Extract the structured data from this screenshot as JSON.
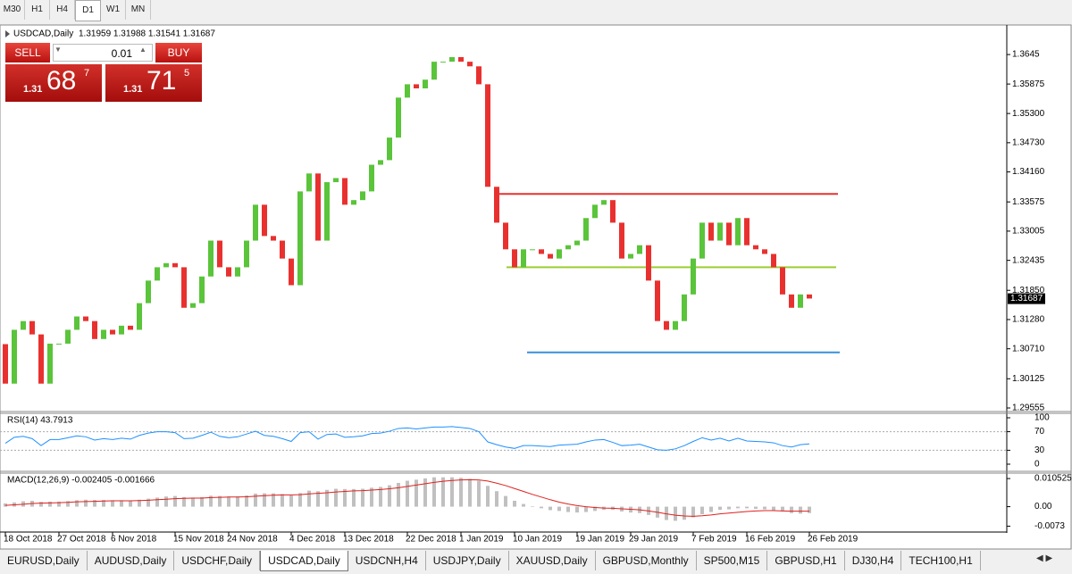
{
  "toolbar": {
    "timeframes": [
      "M30",
      "H1",
      "H4",
      "D1",
      "W1",
      "MN"
    ],
    "active": "D1"
  },
  "trade_panel": {
    "sell": "SELL",
    "buy": "BUY",
    "lot": "0.01",
    "bid": {
      "big": "1.31",
      "main": "68",
      "small": "7"
    },
    "ask": {
      "big": "1.31",
      "main": "71",
      "small": "5"
    }
  },
  "chart_data": [
    {
      "type": "candlestick",
      "title": "USDCAD,Daily",
      "subtitle": "1.31959 1.31988 1.31541 1.31687",
      "categories": [
        "18 Oct 2018",
        null,
        null,
        null,
        null,
        null,
        "27 Oct 2018",
        null,
        null,
        null,
        null,
        null,
        "6 Nov 2018",
        null,
        null,
        null,
        null,
        null,
        null,
        "15 Nov 2018",
        null,
        null,
        null,
        null,
        null,
        "24 Nov 2018",
        null,
        null,
        null,
        null,
        null,
        null,
        "4 Dec 2018",
        null,
        null,
        null,
        null,
        null,
        "13 Dec 2018",
        null,
        null,
        null,
        null,
        null,
        null,
        "22 Dec 2018",
        null,
        null,
        null,
        null,
        null,
        "1 Jan 2019",
        null,
        null,
        null,
        null,
        null,
        "10 Jan 2019",
        null,
        null,
        null,
        null,
        null,
        null,
        "19 Jan 2019",
        null,
        null,
        null,
        null,
        null,
        "29 Jan 2019",
        null,
        null,
        null,
        null,
        null,
        null,
        "7 Feb 2019",
        null,
        null,
        null,
        null,
        null,
        "16 Feb 2019",
        null,
        null,
        null,
        null,
        null,
        null,
        "26 Feb 2019"
      ],
      "open": [
        1.308,
        1.3003,
        1.3108,
        1.3125,
        1.3099,
        1.3003,
        1.3081,
        1.3081,
        1.3108,
        1.3134,
        1.3125,
        1.309,
        1.3108,
        1.3099,
        1.3116,
        1.3108,
        1.316,
        1.3204,
        1.323,
        1.3238,
        1.323,
        1.3151,
        1.316,
        1.3212,
        1.3282,
        1.323,
        1.3212,
        1.323,
        1.3282,
        1.3352,
        1.3291,
        1.3282,
        1.3247,
        1.3195,
        1.3378,
        1.3413,
        1.3282,
        1.3396,
        1.3404,
        1.3352,
        1.3361,
        1.3378,
        1.343,
        1.3439,
        1.3483,
        1.3561,
        1.3587,
        1.3579,
        1.3596,
        1.3631,
        1.3631,
        1.364,
        1.3631,
        1.3622,
        1.3587,
        1.3387,
        1.3317,
        1.3265,
        1.323,
        1.3265,
        1.3265,
        1.3256,
        1.3247,
        1.3265,
        1.3273,
        1.3282,
        1.3326,
        1.3352,
        1.3361,
        1.3317,
        1.3247,
        1.3256,
        1.3273,
        1.3204,
        1.3125,
        1.3108,
        1.3125,
        1.3177,
        1.3247,
        1.3317,
        1.3282,
        1.3317,
        1.3273,
        1.3326,
        1.3273,
        1.3265,
        1.3256,
        1.323,
        1.3177,
        1.3151,
        1.3177
      ],
      "close": [
        1.3003,
        1.3108,
        1.3125,
        1.3099,
        1.3003,
        1.3081,
        1.3081,
        1.3108,
        1.3134,
        1.3125,
        1.309,
        1.3108,
        1.3099,
        1.3116,
        1.3108,
        1.316,
        1.3204,
        1.323,
        1.3238,
        1.323,
        1.3151,
        1.316,
        1.3212,
        1.3282,
        1.323,
        1.3212,
        1.323,
        1.3282,
        1.3352,
        1.3291,
        1.3282,
        1.3247,
        1.3195,
        1.3378,
        1.3413,
        1.3282,
        1.3396,
        1.3404,
        1.3352,
        1.3361,
        1.3378,
        1.343,
        1.3439,
        1.3483,
        1.3561,
        1.3587,
        1.3579,
        1.3596,
        1.3631,
        1.3631,
        1.364,
        1.3631,
        1.3622,
        1.3587,
        1.3387,
        1.3317,
        1.3265,
        1.323,
        1.3265,
        1.3265,
        1.3256,
        1.3247,
        1.3265,
        1.3273,
        1.3282,
        1.3326,
        1.3352,
        1.3361,
        1.3317,
        1.3247,
        1.3256,
        1.3273,
        1.3204,
        1.3125,
        1.3108,
        1.3125,
        1.3177,
        1.3247,
        1.3317,
        1.3282,
        1.3317,
        1.3273,
        1.3326,
        1.3273,
        1.3265,
        1.3256,
        1.323,
        1.3177,
        1.3151,
        1.3177,
        1.3169
      ],
      "up_color": "#5ac43a",
      "down_color": "#e8312f",
      "ylim": [
        1.29503,
        1.37009
      ],
      "yticks": [
        1.3645,
        1.35875,
        {
          "value": 1.353,
          "label": "1.35300"
        },
        {
          "value": 1.3473,
          "label": "1.34730"
        },
        {
          "value": 1.3416,
          "label": "1.34160"
        },
        1.33575,
        1.33005,
        1.32435,
        {
          "value": 1.3185,
          "label": "1.31850"
        },
        {
          "value": 1.3128,
          "label": "1.31280"
        },
        {
          "value": 1.3071,
          "label": "1.30710"
        },
        1.30125,
        1.29555
      ],
      "current_price": 1.31687,
      "hlines": [
        {
          "value": 1.3373,
          "color": "#e8312f"
        },
        {
          "value": 1.323,
          "color": "#9acd32"
        },
        {
          "value": 1.3064,
          "color": "#3a8fd9"
        }
      ]
    },
    {
      "type": "line",
      "title": "RSI(14) 43.7913",
      "values": [
        45,
        58,
        60,
        55,
        40,
        53,
        53,
        57,
        61,
        59,
        52,
        55,
        53,
        56,
        54,
        62,
        67,
        70,
        70,
        68,
        55,
        56,
        62,
        69,
        60,
        57,
        59,
        65,
        71,
        62,
        60,
        55,
        49,
        68,
        70,
        54,
        64,
        65,
        58,
        59,
        61,
        66,
        67,
        71,
        77,
        78,
        76,
        78,
        80,
        80,
        81,
        79,
        77,
        70,
        48,
        42,
        37,
        34,
        40,
        40,
        39,
        38,
        41,
        42,
        43,
        48,
        52,
        53,
        47,
        40,
        41,
        43,
        37,
        31,
        30,
        33,
        40,
        49,
        57,
        52,
        56,
        50,
        56,
        50,
        49,
        48,
        46,
        40,
        37,
        42,
        43.79
      ],
      "color": "#1e90ff",
      "ylim": [
        -13.5,
        109.6
      ],
      "yticks": [
        0,
        30,
        70,
        100
      ],
      "levels": [
        30,
        70
      ]
    },
    {
      "type": "macd",
      "title": "MACD(12,26,9) -0.002405 -0.001666",
      "values": [
        0.0012,
        0.0016,
        0.002,
        0.0022,
        0.0018,
        0.0019,
        0.0019,
        0.0021,
        0.0024,
        0.0026,
        0.0025,
        0.0025,
        0.0024,
        0.0024,
        0.0023,
        0.0026,
        0.003,
        0.0034,
        0.0038,
        0.004,
        0.0036,
        0.0034,
        0.0036,
        0.0041,
        0.004,
        0.0038,
        0.0038,
        0.0042,
        0.0049,
        0.005,
        0.005,
        0.0047,
        0.0042,
        0.0051,
        0.006,
        0.0058,
        0.0063,
        0.0067,
        0.0066,
        0.0066,
        0.0067,
        0.0071,
        0.0074,
        0.008,
        0.0089,
        0.0097,
        0.0101,
        0.0106,
        0.011,
        0.011,
        0.011,
        0.0108,
        0.0104,
        0.0097,
        0.0078,
        0.0058,
        0.004,
        0.0022,
        0.001,
        0.0002,
        -0.0006,
        -0.0013,
        -0.0016,
        -0.002,
        -0.0022,
        -0.002,
        -0.0016,
        -0.0012,
        -0.0012,
        -0.0018,
        -0.0022,
        -0.0024,
        -0.0031,
        -0.0041,
        -0.005,
        -0.0053,
        -0.0049,
        -0.004,
        -0.0028,
        -0.002,
        -0.0012,
        -0.001,
        -0.0006,
        -0.0006,
        -0.0008,
        -0.001,
        -0.0013,
        -0.0018,
        -0.0024,
        -0.0026,
        -0.0024
      ],
      "signal": [
        0.0005,
        0.0007,
        0.0009,
        0.0012,
        0.0013,
        0.0014,
        0.0015,
        0.0016,
        0.0018,
        0.0019,
        0.002,
        0.0021,
        0.0022,
        0.0022,
        0.0022,
        0.0023,
        0.0024,
        0.0026,
        0.0028,
        0.003,
        0.0031,
        0.0032,
        0.0032,
        0.0034,
        0.0035,
        0.0036,
        0.0036,
        0.0037,
        0.0039,
        0.0041,
        0.0043,
        0.0044,
        0.0044,
        0.0045,
        0.0048,
        0.005,
        0.0052,
        0.0055,
        0.0057,
        0.0059,
        0.006,
        0.0062,
        0.0064,
        0.0067,
        0.0071,
        0.0076,
        0.0081,
        0.0086,
        0.0091,
        0.0095,
        0.0098,
        0.01,
        0.0101,
        0.01,
        0.0096,
        0.0088,
        0.0079,
        0.0068,
        0.0057,
        0.0046,
        0.0036,
        0.0026,
        0.0017,
        0.001,
        0.0004,
        0.0,
        -0.0003,
        -0.0005,
        -0.0006,
        -0.0008,
        -0.001,
        -0.0012,
        -0.0016,
        -0.0021,
        -0.0027,
        -0.0032,
        -0.0035,
        -0.0036,
        -0.0034,
        -0.0031,
        -0.0027,
        -0.0024,
        -0.0021,
        -0.0018,
        -0.0016,
        -0.0015,
        -0.0015,
        -0.0016,
        -0.0017,
        -0.0017,
        -0.0017
      ],
      "bar_color": "#c0c0c0",
      "signal_color": "#e0201c",
      "ylim": [
        -0.00917,
        0.01256
      ],
      "yticks": [
        0.010525,
        {
          "value": 0,
          "label": "0.00"
        },
        -0.0073
      ]
    }
  ],
  "tabs": [
    "EURUSD,Daily",
    "AUDUSD,Daily",
    "USDCHF,Daily",
    "USDCAD,Daily",
    "USDCNH,H4",
    "USDJPY,Daily",
    "XAUUSD,Daily",
    "GBPUSD,Monthly",
    "SP500,M15",
    "GBPUSD,H1",
    "DJ30,H4",
    "TECH100,H1"
  ],
  "active_tab": "USDCAD,Daily"
}
